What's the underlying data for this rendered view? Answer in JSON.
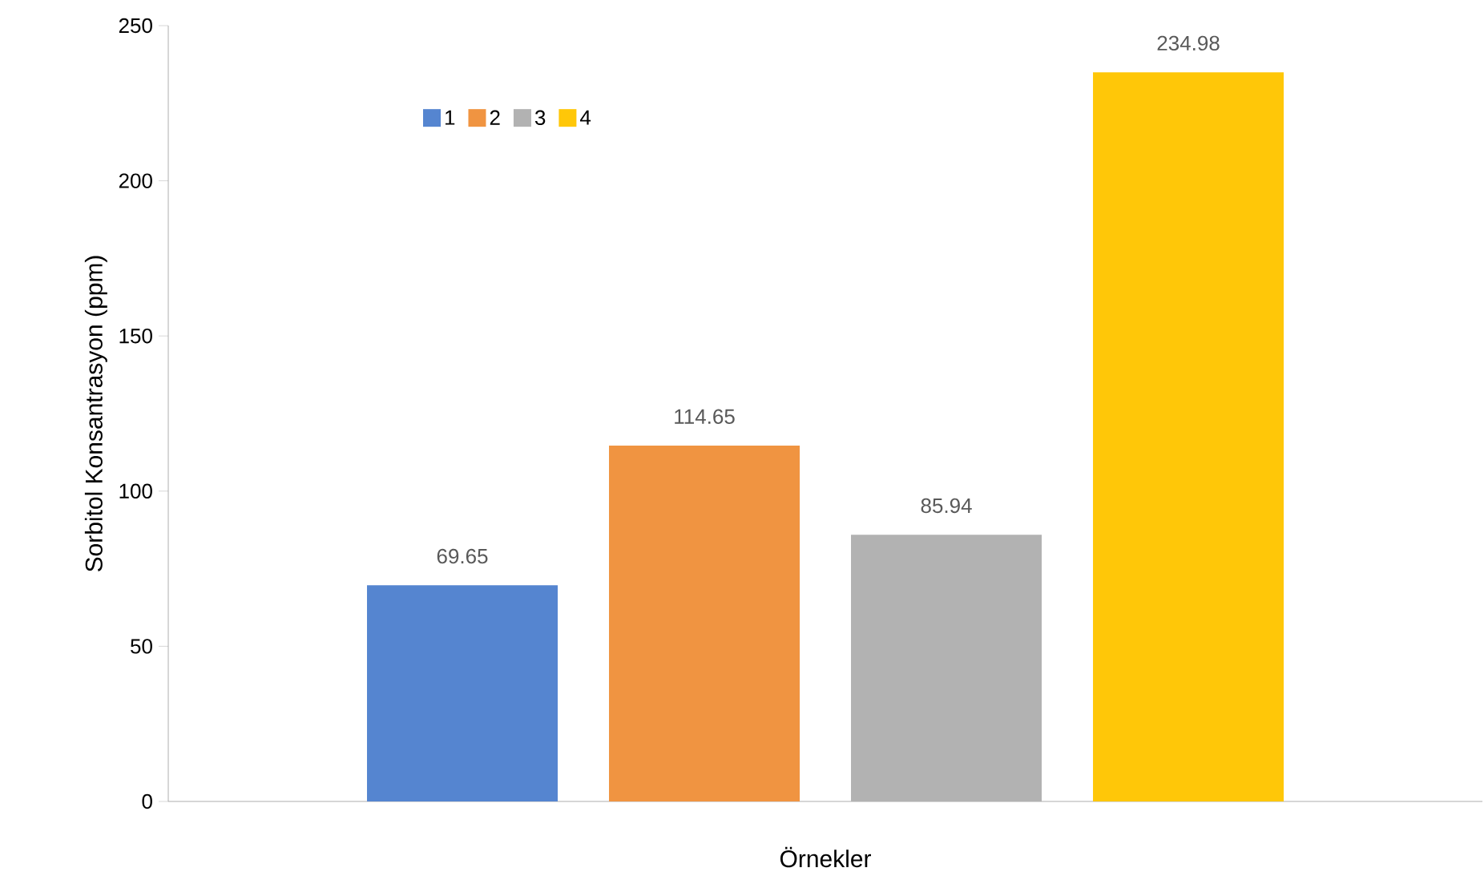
{
  "chart_data": {
    "type": "bar",
    "xlabel": "Örnekler",
    "ylabel": "Sorbitol Konsantrasyon (ppm)",
    "categories": [
      null
    ],
    "series": [
      {
        "name": "1",
        "color": "#5585d0",
        "values": [
          69.65
        ]
      },
      {
        "name": "2",
        "color": "#f09441",
        "values": [
          114.65
        ]
      },
      {
        "name": "3",
        "color": "#b2b2b2",
        "values": [
          85.94
        ]
      },
      {
        "name": "4",
        "color": "#ffc708",
        "values": [
          234.98
        ]
      }
    ],
    "ylim": [
      0,
      250
    ],
    "yticks": [
      0,
      50,
      100,
      150,
      200,
      250
    ],
    "data_labels": true,
    "legend": "top left"
  }
}
